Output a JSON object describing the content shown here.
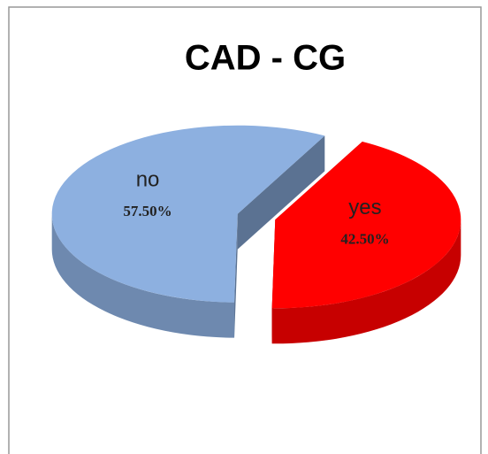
{
  "chart_data": {
    "type": "pie",
    "title": "CAD - CG",
    "categories": [
      "no",
      "yes"
    ],
    "values": [
      57.5,
      42.5
    ],
    "value_labels": [
      "57.50%",
      "42.50%"
    ],
    "colors": [
      "#8db0e0",
      "#ff0000"
    ]
  }
}
